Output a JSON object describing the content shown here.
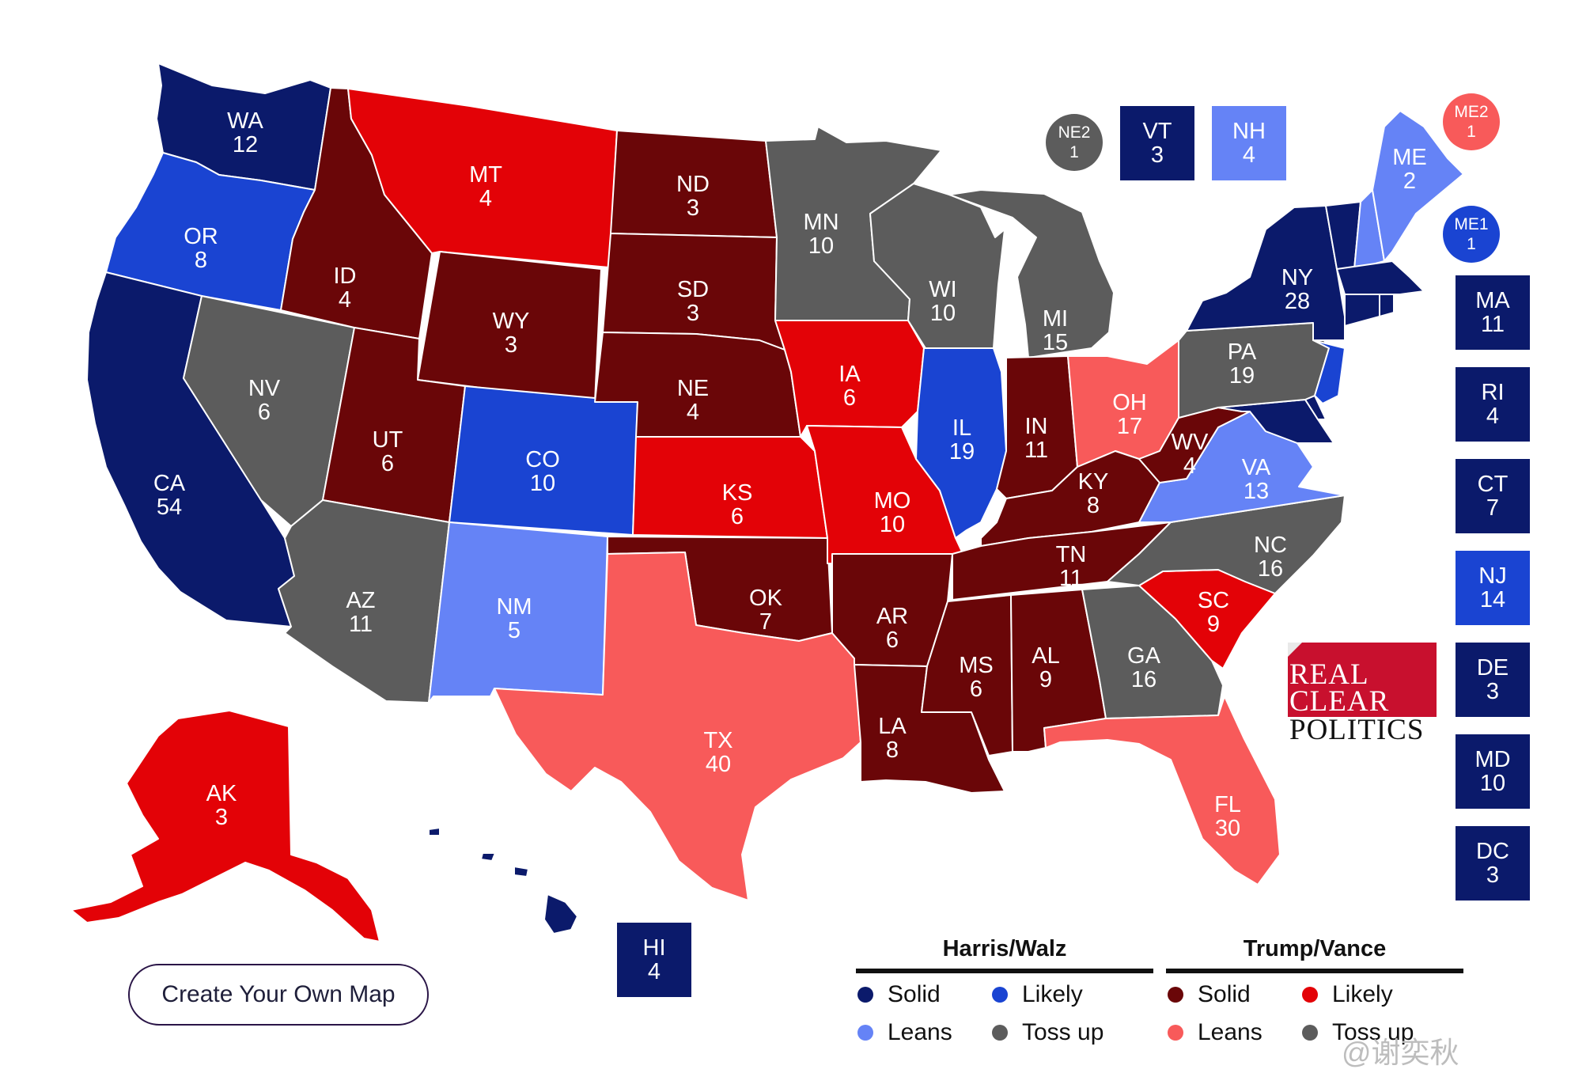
{
  "colors": {
    "harris_solid": "#0b1a6b",
    "harris_likely": "#1a44d2",
    "harris_leans": "#6583f6",
    "tossup": "#5c5c5c",
    "trump_solid": "#6a0608",
    "trump_likely": "#e30207",
    "trump_leans": "#f85a5a"
  },
  "states": {
    "WA": {
      "abbr": "WA",
      "ev": "12",
      "rating": "harris_solid"
    },
    "OR": {
      "abbr": "OR",
      "ev": "8",
      "rating": "harris_likely"
    },
    "CA": {
      "abbr": "CA",
      "ev": "54",
      "rating": "harris_solid"
    },
    "NV": {
      "abbr": "NV",
      "ev": "6",
      "rating": "tossup"
    },
    "ID": {
      "abbr": "ID",
      "ev": "4",
      "rating": "trump_solid"
    },
    "MT": {
      "abbr": "MT",
      "ev": "4",
      "rating": "trump_likely"
    },
    "WY": {
      "abbr": "WY",
      "ev": "3",
      "rating": "trump_solid"
    },
    "UT": {
      "abbr": "UT",
      "ev": "6",
      "rating": "trump_solid"
    },
    "AZ": {
      "abbr": "AZ",
      "ev": "11",
      "rating": "tossup"
    },
    "CO": {
      "abbr": "CO",
      "ev": "10",
      "rating": "harris_likely"
    },
    "NM": {
      "abbr": "NM",
      "ev": "5",
      "rating": "harris_leans"
    },
    "ND": {
      "abbr": "ND",
      "ev": "3",
      "rating": "trump_solid"
    },
    "SD": {
      "abbr": "SD",
      "ev": "3",
      "rating": "trump_solid"
    },
    "NE": {
      "abbr": "NE",
      "ev": "4",
      "rating": "trump_solid"
    },
    "KS": {
      "abbr": "KS",
      "ev": "6",
      "rating": "trump_likely"
    },
    "OK": {
      "abbr": "OK",
      "ev": "7",
      "rating": "trump_solid"
    },
    "TX": {
      "abbr": "TX",
      "ev": "40",
      "rating": "trump_leans"
    },
    "MN": {
      "abbr": "MN",
      "ev": "10",
      "rating": "tossup"
    },
    "IA": {
      "abbr": "IA",
      "ev": "6",
      "rating": "trump_likely"
    },
    "MO": {
      "abbr": "MO",
      "ev": "10",
      "rating": "trump_likely"
    },
    "AR": {
      "abbr": "AR",
      "ev": "6",
      "rating": "trump_solid"
    },
    "LA": {
      "abbr": "LA",
      "ev": "8",
      "rating": "trump_solid"
    },
    "WI": {
      "abbr": "WI",
      "ev": "10",
      "rating": "tossup"
    },
    "IL": {
      "abbr": "IL",
      "ev": "19",
      "rating": "harris_likely"
    },
    "MI": {
      "abbr": "MI",
      "ev": "15",
      "rating": "tossup"
    },
    "IN": {
      "abbr": "IN",
      "ev": "11",
      "rating": "trump_solid"
    },
    "OH": {
      "abbr": "OH",
      "ev": "17",
      "rating": "trump_leans"
    },
    "KY": {
      "abbr": "KY",
      "ev": "8",
      "rating": "trump_solid"
    },
    "TN": {
      "abbr": "TN",
      "ev": "11",
      "rating": "trump_solid"
    },
    "MS": {
      "abbr": "MS",
      "ev": "6",
      "rating": "trump_solid"
    },
    "AL": {
      "abbr": "AL",
      "ev": "9",
      "rating": "trump_solid"
    },
    "GA": {
      "abbr": "GA",
      "ev": "16",
      "rating": "tossup"
    },
    "FL": {
      "abbr": "FL",
      "ev": "30",
      "rating": "trump_leans"
    },
    "SC": {
      "abbr": "SC",
      "ev": "9",
      "rating": "trump_likely"
    },
    "NC": {
      "abbr": "NC",
      "ev": "16",
      "rating": "tossup"
    },
    "VA": {
      "abbr": "VA",
      "ev": "13",
      "rating": "harris_leans"
    },
    "WV": {
      "abbr": "WV",
      "ev": "4",
      "rating": "trump_solid"
    },
    "PA": {
      "abbr": "PA",
      "ev": "19",
      "rating": "tossup"
    },
    "NY": {
      "abbr": "NY",
      "ev": "28",
      "rating": "harris_solid"
    },
    "ME": {
      "abbr": "ME",
      "ev": "2",
      "rating": "harris_leans"
    },
    "AK": {
      "abbr": "AK",
      "ev": "3",
      "rating": "trump_likely"
    },
    "HI": {
      "abbr": "HI",
      "ev": "4",
      "rating": "harris_solid"
    },
    "VT": {
      "abbr": "VT",
      "ev": "3",
      "rating": "harris_solid"
    },
    "NH": {
      "abbr": "NH",
      "ev": "4",
      "rating": "harris_leans"
    },
    "MA": {
      "abbr": "MA",
      "ev": "11",
      "rating": "harris_solid"
    },
    "RI": {
      "abbr": "RI",
      "ev": "4",
      "rating": "harris_solid"
    },
    "CT": {
      "abbr": "CT",
      "ev": "7",
      "rating": "harris_solid"
    },
    "NJ": {
      "abbr": "NJ",
      "ev": "14",
      "rating": "harris_likely"
    },
    "DE": {
      "abbr": "DE",
      "ev": "3",
      "rating": "harris_solid"
    },
    "MD": {
      "abbr": "MD",
      "ev": "10",
      "rating": "harris_solid"
    },
    "DC": {
      "abbr": "DC",
      "ev": "3",
      "rating": "harris_solid"
    },
    "NE2": {
      "abbr": "NE2",
      "ev": "1",
      "rating": "tossup"
    },
    "ME2": {
      "abbr": "ME2",
      "ev": "1",
      "rating": "trump_leans"
    },
    "ME1": {
      "abbr": "ME1",
      "ev": "1",
      "rating": "harris_likely"
    }
  },
  "create_map_button": "Create Your Own Map",
  "legend": {
    "harris": {
      "title": "Harris/Walz",
      "items": [
        "Solid",
        "Likely",
        "Leans",
        "Toss up"
      ]
    },
    "trump": {
      "title": "Trump/Vance",
      "items": [
        "Solid",
        "Likely",
        "Leans",
        "Toss up"
      ]
    }
  },
  "logo": {
    "line1": "REAL",
    "line2": "CLEAR",
    "line3": "POLITICS"
  },
  "watermark": "@谢奕秋"
}
